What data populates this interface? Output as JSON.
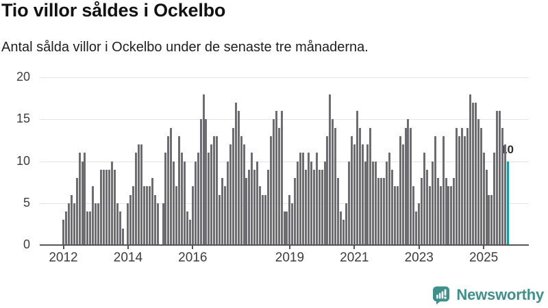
{
  "header": {
    "title": "Tio villor såldes i Ockelbo",
    "subtitle": "Antal sålda villor i Ockelbo under de senaste tre månaderna."
  },
  "chart_data": {
    "type": "bar",
    "title": "Antal sålda villor i Ockelbo under de senaste tre månaderna.",
    "xlabel": "",
    "ylabel": "",
    "ylim": [
      0,
      20
    ],
    "grid": true,
    "y_ticks": [
      0,
      5,
      10,
      15,
      20
    ],
    "x_tick_labels": [
      "2012",
      "2014",
      "2016",
      "2019",
      "2021",
      "2023",
      "2025"
    ],
    "x_ticks": [
      {
        "index": 0,
        "label": "2012"
      },
      {
        "index": 24,
        "label": "2014"
      },
      {
        "index": 48,
        "label": "2016"
      },
      {
        "index": 84,
        "label": "2019"
      },
      {
        "index": 108,
        "label": "2021"
      },
      {
        "index": 132,
        "label": "2023"
      },
      {
        "index": 156,
        "label": "2025"
      }
    ],
    "values": [
      3,
      4,
      5,
      6,
      5,
      8,
      11,
      10,
      11,
      4,
      4,
      7,
      5,
      5,
      9,
      9,
      9,
      9,
      10,
      9,
      5,
      4,
      2,
      0,
      5,
      6,
      7,
      11,
      12,
      12,
      7,
      7,
      7,
      8,
      6,
      5,
      0,
      5,
      11,
      13,
      14,
      10,
      7,
      13,
      11,
      10,
      4,
      3,
      7,
      10,
      11,
      15,
      18,
      15,
      11,
      12,
      13,
      13,
      6,
      8,
      7,
      10,
      12,
      14,
      17,
      16,
      13,
      12,
      8,
      9,
      11,
      9,
      10,
      7,
      6,
      6,
      9,
      13,
      15,
      16,
      14,
      16,
      4,
      4,
      6,
      5,
      8,
      10,
      11,
      11,
      9,
      11,
      10,
      9,
      11,
      9,
      9,
      10,
      13,
      18,
      15,
      14,
      8,
      4,
      3,
      5,
      10,
      13,
      12,
      16,
      14,
      12,
      10,
      12,
      14,
      10,
      10,
      8,
      8,
      8,
      10,
      11,
      9,
      7,
      7,
      13,
      12,
      14,
      15,
      14,
      7,
      4,
      5,
      8,
      11,
      9,
      7,
      10,
      13,
      8,
      7,
      13,
      8,
      7,
      7,
      8,
      14,
      13,
      14,
      13,
      14,
      18,
      17,
      17,
      15,
      14,
      11,
      9,
      6,
      6,
      11,
      16,
      16,
      14,
      12,
      10
    ],
    "highlight_index": 165,
    "highlight_label": "10",
    "colors": {
      "bar": "#6d6d71",
      "highlight": "#0f9d9f",
      "gridline": "#e4e4e4",
      "axis": "#55565a",
      "tick_text": "#3c3c3c"
    }
  },
  "footer": {
    "brand": "Newsworthy",
    "brand_color": "#3e908a"
  }
}
